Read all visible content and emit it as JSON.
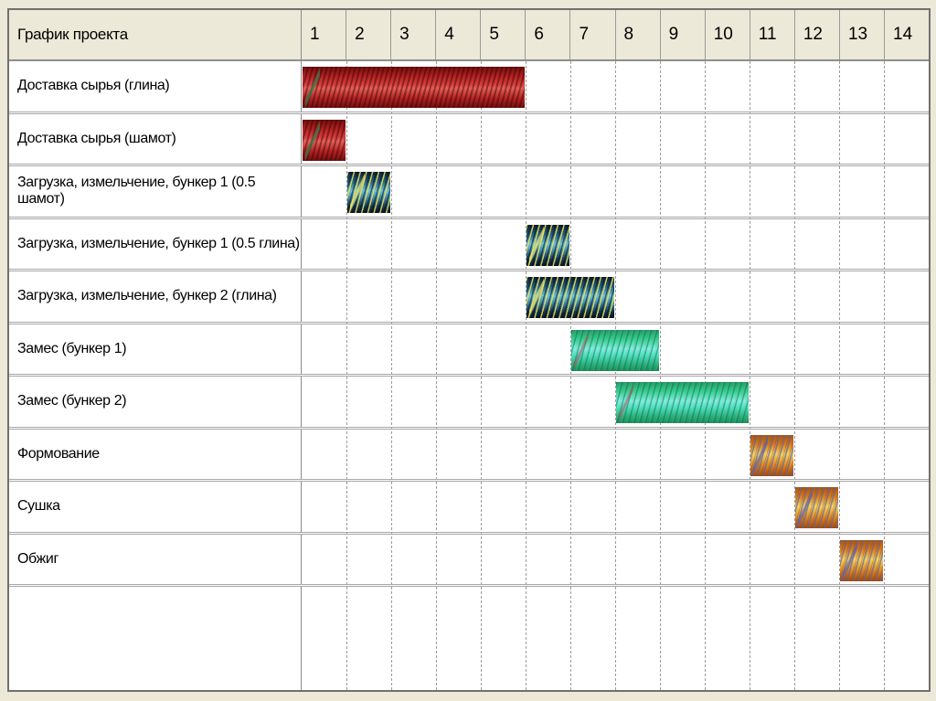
{
  "page": {
    "background_color": "#ECE9D8",
    "table_border_color": "#707070",
    "gridline_color": "#9C9C9C",
    "row_separator_color": "#A6A6A6",
    "header_background": "#ECE9D8"
  },
  "header": {
    "title": "График проекта",
    "columns": [
      "1",
      "2",
      "3",
      "4",
      "5",
      "6",
      "7",
      "8",
      "9",
      "10",
      "11",
      "12",
      "13",
      "14"
    ]
  },
  "chart_data": {
    "type": "gantt",
    "title": "График проекта",
    "x_axis": {
      "tick_labels": [
        "1",
        "2",
        "3",
        "4",
        "5",
        "6",
        "7",
        "8",
        "9",
        "10",
        "11",
        "12",
        "13",
        "14"
      ],
      "min": 1,
      "max": 14,
      "grid": "dashed-vertical"
    },
    "legend_position": "none",
    "tasks": [
      {
        "label": "Доставка сырья (глина)",
        "start": 1,
        "end": 5,
        "duration": 5,
        "style": "red"
      },
      {
        "label": "Доставка сырья (шамот)",
        "start": 1,
        "end": 1,
        "duration": 1,
        "style": "red"
      },
      {
        "label": "Загрузка, измельчение, бункер 1 (0.5 шамот)",
        "start": 2,
        "end": 2,
        "duration": 1,
        "style": "teal"
      },
      {
        "label": "Загрузка, измельчение, бункер 1 (0.5 глина)",
        "start": 6,
        "end": 6,
        "duration": 1,
        "style": "teal"
      },
      {
        "label": "Загрузка, измельчение, бункер 2 (глина)",
        "start": 6,
        "end": 7,
        "duration": 2,
        "style": "teal"
      },
      {
        "label": "Замес (бункер 1)",
        "start": 7,
        "end": 8,
        "duration": 2,
        "style": "green"
      },
      {
        "label": "Замес (бункер 2)",
        "start": 8,
        "end": 10,
        "duration": 3,
        "style": "green"
      },
      {
        "label": "Формование",
        "start": 11,
        "end": 11,
        "duration": 1,
        "style": "orange"
      },
      {
        "label": "Сушка",
        "start": 12,
        "end": 12,
        "duration": 1,
        "style": "orange"
      },
      {
        "label": "Обжиг",
        "start": 13,
        "end": 13,
        "duration": 1,
        "style": "orange"
      }
    ],
    "bar_palette": {
      "red": {
        "dark": "#6E0F0F",
        "mid": "#C43434",
        "light": "#E4635A",
        "stripe": "#287846"
      },
      "teal": {
        "dark": "#0B1D2C",
        "mid": "#2E7694",
        "light": "#6FC3D4",
        "stripe": "#ECE05C"
      },
      "green": {
        "dark": "#179055",
        "mid": "#2FD08A",
        "light": "#7DF2DC",
        "stripe": "#0A6E64"
      },
      "orange": {
        "dark": "#9D4D0E",
        "mid": "#D67A1E",
        "light": "#F2D468",
        "stripe": "#555FA8"
      }
    }
  }
}
